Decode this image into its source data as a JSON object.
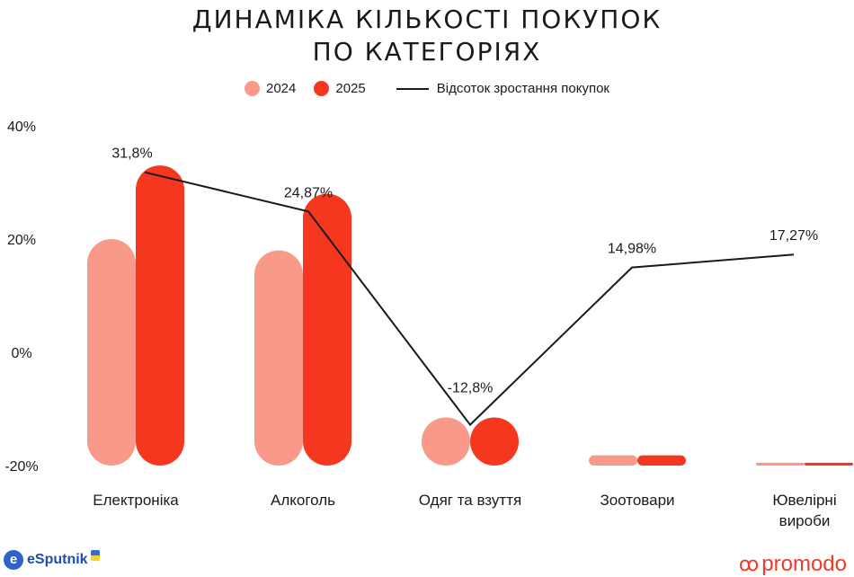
{
  "title_lines": [
    "ДИНАМІКА КІЛЬКОСТІ ПОКУПОК",
    "ПО КАТЕГОРІЯХ"
  ],
  "legend": {
    "s2024": "2024",
    "s2025": "2025",
    "line": "Відсоток зростання покупок"
  },
  "brands": {
    "left": "eSputnik",
    "left_icon": "e",
    "right": "promodo",
    "right_icon": "ꝏ"
  },
  "colors": {
    "s2024": "#f9998a",
    "s2025": "#f5371f",
    "line": "#1a1a1a",
    "brand_left": "#1f4fa8",
    "brand_right": "#ee3b2a"
  },
  "chart_data": {
    "type": "bar",
    "categories": [
      [
        "Електроніка"
      ],
      [
        "Алкоголь"
      ],
      [
        "Одяг та взуття"
      ],
      [
        "Зоотовари"
      ],
      [
        "Ювелірні",
        "вироби"
      ]
    ],
    "series": [
      {
        "name": "2024",
        "values": [
          20,
          18,
          -11.5,
          -18.2,
          -19.5
        ]
      },
      {
        "name": "2025",
        "values": [
          33,
          28,
          -11.5,
          -18.2,
          -19.5
        ]
      }
    ],
    "line_series": {
      "name": "Відсоток зростання покупок",
      "values": [
        31.8,
        24.87,
        -12.8,
        14.98,
        17.27
      ],
      "labels": [
        "31,8%",
        "24,87%",
        "-12,8%",
        "14,98%",
        "17,27%"
      ]
    },
    "y_ticks": [
      "40%",
      "20%",
      "0%",
      "-20%"
    ],
    "y_tick_values": [
      40,
      20,
      0,
      -20
    ],
    "ylim": [
      -20,
      40
    ],
    "grid": false,
    "legend_position": "top-center"
  }
}
